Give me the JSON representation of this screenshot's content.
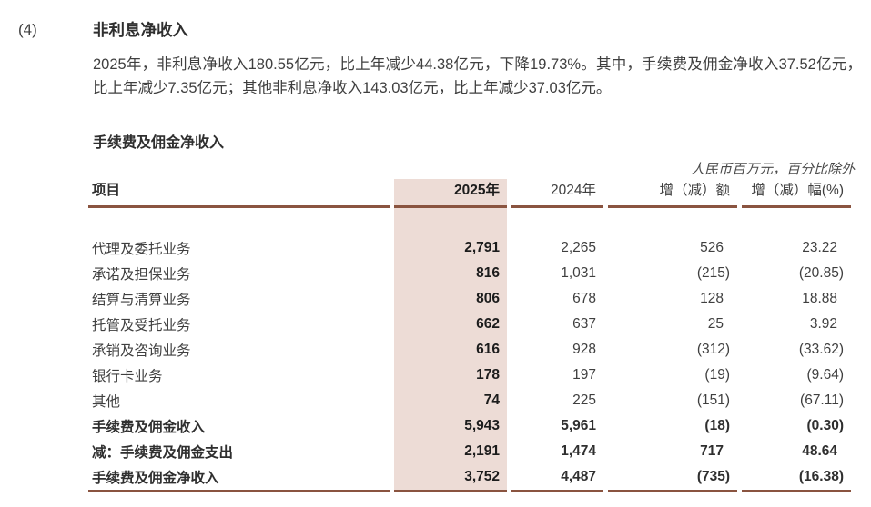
{
  "section": {
    "index": "(4)",
    "title": "非利息净收入",
    "paragraph": "2025年，非利息净收入180.55亿元，比上年减少44.38亿元，下降19.73%。其中，手续费及佣金净收入37.52亿元，比上年减少7.35亿元；其他非利息净收入143.03亿元，比上年减少37.03亿元。"
  },
  "table": {
    "title": "手续费及佣金净收入",
    "unit_note": "人民币百万元，百分比除外",
    "columns": [
      "项目",
      "2025年",
      "2024年",
      "增（减）额",
      "增（减）幅(%)"
    ],
    "rows": [
      {
        "label": "代理及委托业务",
        "v2025": "2,791",
        "v2024": "2,265",
        "change": "526",
        "change_pct": "23.22",
        "bold": false
      },
      {
        "label": "承诺及担保业务",
        "v2025": "816",
        "v2024": "1,031",
        "change": "(215)",
        "change_pct": "(20.85)",
        "bold": false
      },
      {
        "label": "结算与清算业务",
        "v2025": "806",
        "v2024": "678",
        "change": "128",
        "change_pct": "18.88",
        "bold": false
      },
      {
        "label": "托管及受托业务",
        "v2025": "662",
        "v2024": "637",
        "change": "25",
        "change_pct": "3.92",
        "bold": false
      },
      {
        "label": "承销及咨询业务",
        "v2025": "616",
        "v2024": "928",
        "change": "(312)",
        "change_pct": "(33.62)",
        "bold": false
      },
      {
        "label": "银行卡业务",
        "v2025": "178",
        "v2024": "197",
        "change": "(19)",
        "change_pct": "(9.64)",
        "bold": false
      },
      {
        "label": "其他",
        "v2025": "74",
        "v2024": "225",
        "change": "(151)",
        "change_pct": "(67.11)",
        "bold": false
      },
      {
        "label": "手续费及佣金收入",
        "v2025": "5,943",
        "v2024": "5,961",
        "change": "(18)",
        "change_pct": "(0.30)",
        "bold": true
      },
      {
        "label": "减：手续费及佣金支出",
        "v2025": "2,191",
        "v2024": "1,474",
        "change": "717",
        "change_pct": "48.64",
        "bold": true
      },
      {
        "label": "手续费及佣金净收入",
        "v2025": "3,752",
        "v2024": "4,487",
        "change": "(735)",
        "change_pct": "(16.38)",
        "bold": true
      }
    ]
  },
  "colors": {
    "highlight_column_bg": "#eddcd6",
    "rule_line": "#8a5440",
    "body_text": "#3f3f3f",
    "emphasis_text": "#1c1c1c"
  }
}
